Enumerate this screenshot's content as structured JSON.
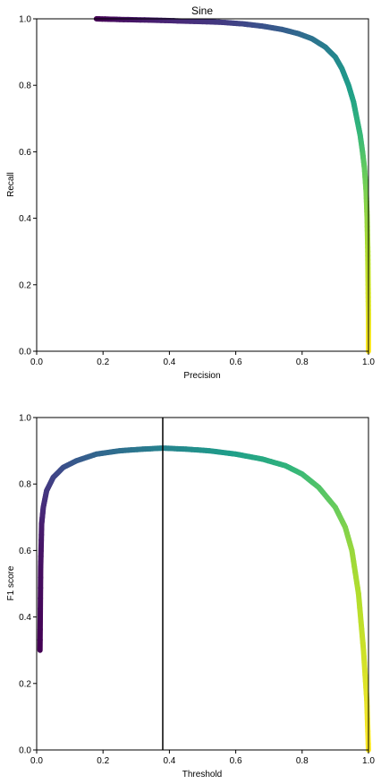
{
  "chart_data": [
    {
      "type": "line",
      "title": "Sine",
      "xlabel": "Precision",
      "ylabel": "Recall",
      "xlim": [
        0.0,
        1.0
      ],
      "ylim": [
        0.0,
        1.0
      ],
      "xticks": [
        "0.0",
        "0.2",
        "0.4",
        "0.6",
        "0.8",
        "1.0"
      ],
      "yticks": [
        "0.0",
        "0.2",
        "0.4",
        "0.6",
        "0.8",
        "1.0"
      ],
      "colormap": "viridis",
      "grid": false,
      "series": [
        {
          "x": [
            0.18,
            0.25,
            0.35,
            0.45,
            0.55,
            0.62,
            0.68,
            0.74,
            0.79,
            0.83,
            0.87,
            0.9,
            0.92,
            0.94,
            0.955,
            0.965,
            0.975,
            0.982,
            0.988,
            0.993,
            0.996,
            0.998,
            0.999,
            1.0,
            1.0
          ],
          "y": [
            1.0,
            0.998,
            0.996,
            0.993,
            0.99,
            0.985,
            0.978,
            0.968,
            0.955,
            0.94,
            0.915,
            0.885,
            0.85,
            0.8,
            0.75,
            0.7,
            0.65,
            0.6,
            0.55,
            0.48,
            0.4,
            0.3,
            0.2,
            0.1,
            0.0
          ]
        }
      ]
    },
    {
      "type": "line",
      "title": "",
      "xlabel": "Threshold",
      "ylabel": "F1 score",
      "xlim": [
        0.0,
        1.0
      ],
      "ylim": [
        0.0,
        1.0
      ],
      "xticks": [
        "0.0",
        "0.2",
        "0.4",
        "0.6",
        "0.8",
        "1.0"
      ],
      "yticks": [
        "0.0",
        "0.2",
        "0.4",
        "0.6",
        "0.8",
        "1.0"
      ],
      "colormap": "viridis",
      "grid": false,
      "vline_x": 0.38,
      "series": [
        {
          "x": [
            0.01,
            0.012,
            0.015,
            0.02,
            0.03,
            0.05,
            0.08,
            0.12,
            0.18,
            0.25,
            0.32,
            0.38,
            0.45,
            0.52,
            0.6,
            0.68,
            0.75,
            0.8,
            0.85,
            0.9,
            0.93,
            0.95,
            0.97,
            0.985,
            0.995,
            1.0
          ],
          "y": [
            0.3,
            0.55,
            0.68,
            0.73,
            0.78,
            0.82,
            0.85,
            0.87,
            0.89,
            0.9,
            0.905,
            0.908,
            0.905,
            0.9,
            0.89,
            0.875,
            0.855,
            0.83,
            0.79,
            0.73,
            0.67,
            0.6,
            0.47,
            0.3,
            0.15,
            0.0
          ]
        }
      ]
    }
  ]
}
